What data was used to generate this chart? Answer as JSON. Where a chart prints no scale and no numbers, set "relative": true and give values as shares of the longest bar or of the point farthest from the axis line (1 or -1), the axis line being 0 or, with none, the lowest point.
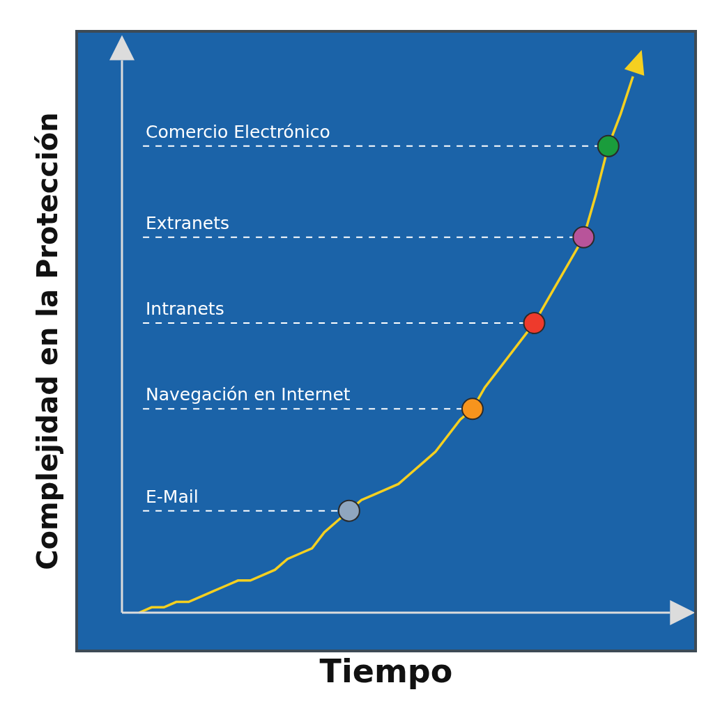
{
  "chart_data": {
    "type": "line",
    "relative": true,
    "xlabel": "Tiempo",
    "ylabel": "Complejidad en la Protección",
    "legend": false,
    "grid": false,
    "categories": [
      null,
      null,
      null,
      null,
      null,
      null,
      null,
      null,
      null,
      null,
      null,
      null,
      null,
      null,
      null,
      null,
      null,
      null,
      null,
      null,
      null,
      null,
      null,
      null,
      null,
      null,
      null,
      null,
      null,
      null,
      null,
      null,
      null,
      null,
      null,
      null,
      null,
      null,
      null,
      null,
      null
    ],
    "series": [
      {
        "type": "line",
        "color": "#f5d020",
        "line_style": "solid",
        "values": [
          0,
          0.01,
          0.01,
          0.02,
          0.02,
          0.03,
          0.04,
          0.05,
          0.06,
          0.06,
          0.07,
          0.08,
          0.1,
          0.11,
          0.12,
          0.15,
          0.17,
          0.19,
          0.21,
          0.22,
          0.23,
          0.24,
          0.26,
          0.28,
          0.3,
          0.33,
          0.36,
          0.38,
          0.42,
          0.45,
          0.48,
          0.51,
          0.54,
          0.58,
          0.62,
          0.66,
          0.7,
          0.78,
          0.87,
          0.93,
          1
        ],
        "colors": [
          null,
          null,
          null,
          null,
          null,
          null,
          null,
          null,
          null,
          null,
          null,
          null,
          null,
          null,
          null,
          null,
          null,
          "#8fa6bf",
          null,
          null,
          null,
          null,
          null,
          null,
          null,
          null,
          null,
          "#f7941d",
          null,
          null,
          null,
          null,
          "#ee3a2c",
          null,
          null,
          null,
          "#b8549a",
          null,
          "#1a9c3c",
          null,
          null
        ]
      }
    ],
    "ref_lines": [
      {
        "axis": "y",
        "value": 0.19,
        "label": "E-Mail",
        "color": "#ffffff",
        "line_style": "dashed"
      },
      {
        "axis": "y",
        "value": 0.38,
        "label": "Navegación en Internet",
        "color": "#ffffff",
        "line_style": "dashed"
      },
      {
        "axis": "y",
        "value": 0.54,
        "label": "Intranets",
        "color": "#ffffff",
        "line_style": "dashed"
      },
      {
        "axis": "y",
        "value": 0.7,
        "label": "Extranets",
        "color": "#ffffff",
        "line_style": "dashed"
      },
      {
        "axis": "y",
        "value": 0.87,
        "label": "Comercio Electrónico",
        "color": "#ffffff",
        "line_style": "dashed"
      }
    ]
  }
}
